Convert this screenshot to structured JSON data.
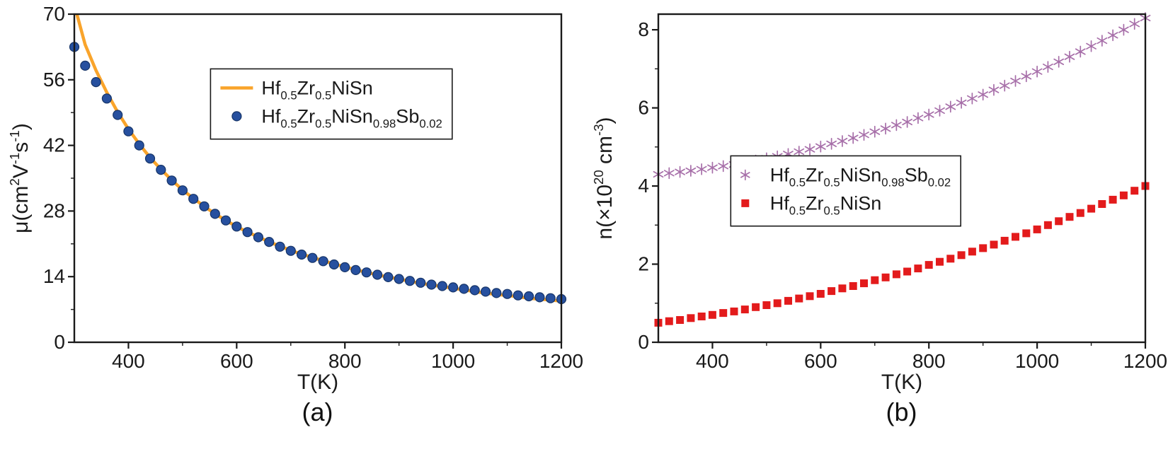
{
  "style": {
    "frame_color": "#1a1a1a",
    "text_color": "#1a1a1a",
    "background": "#ffffff"
  },
  "captions": [
    "(a)",
    "(b)"
  ],
  "chart_data": [
    {
      "type": "line",
      "title": "",
      "xlabel": "T(K)",
      "ylabel": "μ(cm^{2}V^{-1}s^{-1})",
      "xlim": [
        300,
        1200
      ],
      "ylim": [
        0,
        70
      ],
      "xticks": [
        400,
        600,
        800,
        1000,
        1200
      ],
      "xminor": [
        500,
        700,
        900,
        1100
      ],
      "yticks": [
        0,
        14,
        28,
        42,
        56,
        70
      ],
      "yminor": [
        7,
        21,
        35,
        49,
        63
      ],
      "grid": false,
      "legend": {
        "position": "inside-top",
        "fx": 0.3,
        "fy": 0.225
      },
      "series": [
        {
          "name": "Hf_{0.5}Zr_{0.5}NiSn",
          "marker": "line",
          "color": "#F9A42B",
          "line_width": 4.5,
          "x": [
            300,
            320,
            340,
            360,
            380,
            400,
            420,
            440,
            460,
            480,
            500,
            520,
            540,
            560,
            580,
            600,
            620,
            640,
            660,
            680,
            700,
            720,
            740,
            760,
            780,
            800,
            820,
            840,
            860,
            880,
            900,
            920,
            940,
            960,
            980,
            1000,
            1020,
            1040,
            1060,
            1080,
            1100,
            1120,
            1140,
            1160,
            1180,
            1200
          ],
          "y": [
            72,
            63.5,
            58,
            53.3,
            49.1,
            45.5,
            42.3,
            39.4,
            36.9,
            34.6,
            32.5,
            30.7,
            29,
            27.4,
            26,
            24.7,
            23.5,
            22.5,
            21.4,
            20.5,
            19.6,
            18.8,
            18.1,
            17.4,
            16.7,
            16.1,
            15.5,
            14.9,
            14.4,
            13.9,
            13.5,
            13,
            12.6,
            12.2,
            11.9,
            11.5,
            11.2,
            10.8,
            10.5,
            10.2,
            10,
            9.7,
            9.4,
            9.2,
            9,
            8.8
          ]
        },
        {
          "name": "Hf_{0.5}Zr_{0.5}NiSn_{0.98}Sb_{0.02}",
          "marker": "circle",
          "color": "#27509F",
          "edge": "#163467",
          "size": 6.5,
          "x": [
            300,
            320,
            340,
            360,
            380,
            400,
            420,
            440,
            460,
            480,
            500,
            520,
            540,
            560,
            580,
            600,
            620,
            640,
            660,
            680,
            700,
            720,
            740,
            760,
            780,
            800,
            820,
            840,
            860,
            880,
            900,
            920,
            940,
            960,
            980,
            1000,
            1020,
            1040,
            1060,
            1080,
            1100,
            1120,
            1140,
            1160,
            1180,
            1200
          ],
          "y": [
            63,
            59,
            55.5,
            52,
            48.5,
            45,
            42,
            39.2,
            36.8,
            34.5,
            32.4,
            30.6,
            29,
            27.4,
            26,
            24.7,
            23.5,
            22.4,
            21.4,
            20.4,
            19.5,
            18.7,
            18,
            17.3,
            16.6,
            16,
            15.4,
            14.9,
            14.4,
            13.9,
            13.5,
            13.1,
            12.7,
            12.3,
            12,
            11.7,
            11.4,
            11.1,
            10.8,
            10.5,
            10.3,
            10,
            9.8,
            9.6,
            9.4,
            9.2
          ]
        }
      ]
    },
    {
      "type": "scatter",
      "title": "",
      "xlabel": "T(K)",
      "ylabel": "n(×10^{20} cm^{-3})",
      "xlim": [
        300,
        1200
      ],
      "ylim": [
        0,
        8.4
      ],
      "xticks": [
        400,
        600,
        800,
        1000,
        1200
      ],
      "xminor": [
        500,
        700,
        900,
        1100
      ],
      "yticks": [
        0,
        2,
        4,
        6,
        8
      ],
      "yminor": [
        1,
        3,
        5,
        7
      ],
      "grid": false,
      "legend": {
        "position": "inside-middle",
        "fx": 0.145,
        "fy": 0.49
      },
      "series": [
        {
          "name": "Hf_{0.5}Zr_{0.5}NiSn_{0.98}Sb_{0.02}",
          "marker": "star",
          "color": "#A76FA9",
          "size": 7.5,
          "x": [
            300,
            320,
            340,
            360,
            380,
            400,
            420,
            440,
            460,
            480,
            500,
            520,
            540,
            560,
            580,
            600,
            620,
            640,
            660,
            680,
            700,
            720,
            740,
            760,
            780,
            800,
            820,
            840,
            860,
            880,
            900,
            920,
            940,
            960,
            980,
            1000,
            1020,
            1040,
            1060,
            1080,
            1100,
            1120,
            1140,
            1160,
            1180,
            1200
          ],
          "y": [
            4.3,
            4.33,
            4.36,
            4.39,
            4.43,
            4.47,
            4.51,
            4.55,
            4.6,
            4.65,
            4.71,
            4.76,
            4.82,
            4.88,
            4.94,
            5.01,
            5.08,
            5.15,
            5.23,
            5.31,
            5.39,
            5.47,
            5.56,
            5.64,
            5.74,
            5.83,
            5.93,
            6.03,
            6.13,
            6.24,
            6.34,
            6.46,
            6.57,
            6.69,
            6.81,
            6.93,
            7.05,
            7.18,
            7.31,
            7.44,
            7.58,
            7.72,
            7.86,
            8,
            8.15,
            8.3
          ]
        },
        {
          "name": "Hf_{0.5}Zr_{0.5}NiSn",
          "marker": "square",
          "color": "#E31B1C",
          "size": 11,
          "x": [
            300,
            320,
            340,
            360,
            380,
            400,
            420,
            440,
            460,
            480,
            500,
            520,
            540,
            560,
            580,
            600,
            620,
            640,
            660,
            680,
            700,
            720,
            740,
            760,
            780,
            800,
            820,
            840,
            860,
            880,
            900,
            920,
            940,
            960,
            980,
            1000,
            1020,
            1040,
            1060,
            1080,
            1100,
            1120,
            1140,
            1160,
            1180,
            1200
          ],
          "y": [
            0.5,
            0.54,
            0.57,
            0.62,
            0.66,
            0.7,
            0.75,
            0.79,
            0.84,
            0.9,
            0.95,
            1,
            1.06,
            1.12,
            1.18,
            1.24,
            1.31,
            1.38,
            1.44,
            1.51,
            1.59,
            1.66,
            1.74,
            1.81,
            1.89,
            1.98,
            2.06,
            2.14,
            2.23,
            2.32,
            2.41,
            2.5,
            2.6,
            2.7,
            2.79,
            2.89,
            3,
            3.1,
            3.21,
            3.31,
            3.42,
            3.54,
            3.65,
            3.76,
            3.88,
            4
          ]
        }
      ]
    }
  ]
}
